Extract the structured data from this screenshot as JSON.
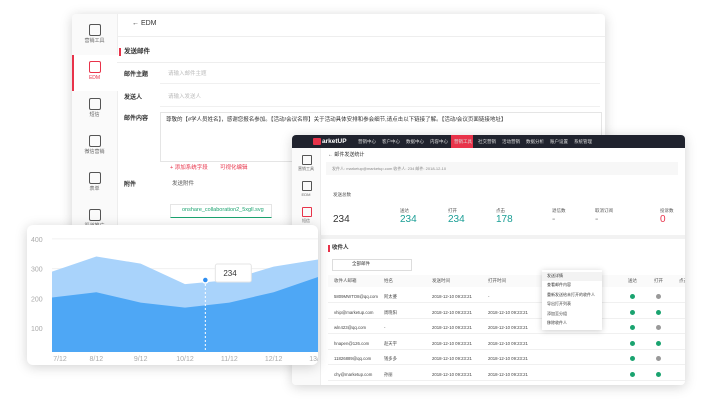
{
  "back_window": {
    "sidebar": [
      "营销工具",
      "EDM",
      "短信",
      "微信营销",
      "表单",
      "渠道推广"
    ],
    "header": "EDM",
    "section": "发送邮件",
    "fields": [
      {
        "label": "邮件主题",
        "placeholder": "请输入邮件主题"
      },
      {
        "label": "发送人",
        "placeholder": "请输入发送人"
      },
      {
        "label": "邮件内容",
        "text": "尊敬的【#学人员姓名】，感谢您报名参加。【活动/会议名称】关于活动具体安排和参会细节,请点击以下链接了解。【活动/会议页面链接地址】"
      }
    ],
    "add_field": "+ 添加系统字段",
    "visual_edit": "可视化编辑",
    "attachment_label": "附件",
    "attachment_check": "发送附件",
    "file": "onshare_collaboration2_5xgll.svg"
  },
  "chart": {
    "type": "area",
    "x": [
      "7/12",
      "8/12",
      "9/12",
      "10/12",
      "11/12",
      "12/12",
      "13/12"
    ],
    "series": [
      {
        "color": "#a9d3fb",
        "values": [
          290,
          341,
          317,
          248,
          262,
          307,
          331
        ]
      },
      {
        "color": "#4ea7f5",
        "values": [
          203,
          221,
          186,
          169,
          186,
          221,
          272
        ]
      }
    ],
    "ylim": [
      20,
      430
    ],
    "yticks": [
      100,
      200,
      300,
      400
    ],
    "tooltip": 234
  },
  "dashboard": {
    "logo": "arketUP",
    "nav": [
      "营销中心",
      "客户中心",
      "数据中心",
      "内容中心",
      "营销工具",
      "社交营销",
      "活动营销",
      "数据分析",
      "账户设置",
      "系统管理"
    ],
    "sidebar": [
      "营销工具",
      "EDM",
      "短信"
    ],
    "breadcrumb": "← 邮件发送统计",
    "sender": "发件人: marketup@marketup.com    收件人: 234    邮件: 2018-12-10",
    "stats": [
      {
        "label": "发送总数",
        "value": "234"
      },
      {
        "label": "送达",
        "value": "234"
      },
      {
        "label": "打开",
        "value": "234"
      },
      {
        "label": "点击",
        "value": "178"
      },
      {
        "label": "退信数",
        "value": "-"
      },
      {
        "label": "取消订阅",
        "value": "-"
      },
      {
        "label": "投诉数",
        "value": "0"
      }
    ],
    "table_title": "收件人",
    "filter": "全部邮件",
    "headers": [
      "收件人邮箱",
      "姓名",
      "发送时间",
      "打开时间",
      "送达",
      "打开",
      "点击"
    ],
    "rows": [
      [
        "5809MWTO8@qq.com",
        "阿太婆",
        "2018-12-10 09:23:21",
        "-"
      ],
      [
        "vhip@marketup.com",
        "周晓阳",
        "2018-12-10 09:23:21",
        "2018-12-10 09:23:21"
      ],
      [
        "wln423@qq.com",
        "-",
        "2018-12-10 09:23:21",
        "2018-12-10 09:23:21"
      ],
      [
        "hnapen@126.com",
        "赵天宇",
        "2018-12-10 09:23:21",
        "2018-12-10 09:23:21"
      ],
      [
        "11826889@qq.com",
        "钱多多",
        "2018-12-10 09:23:21",
        "2018-12-10 09:23:21"
      ],
      [
        "chy@marketup.com",
        "孙丽",
        "2018-12-10 09:23:21",
        "2018-12-10 09:23:21"
      ]
    ],
    "menu": [
      "发送详情",
      "查看邮件内容",
      "重新发送给未打开的收件人",
      "导出打开列表",
      "添加至分组",
      "移除收件人"
    ]
  }
}
